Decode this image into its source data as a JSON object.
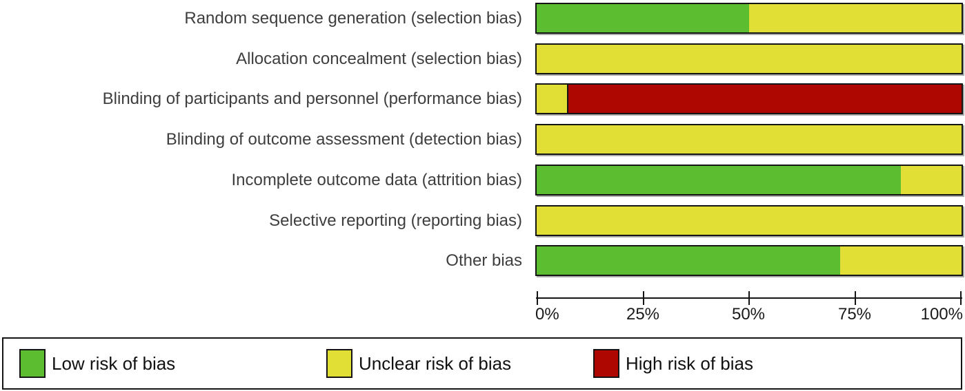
{
  "chart_data": {
    "type": "bar",
    "variant": "horizontal-stacked-percent",
    "title": "",
    "xlabel": "",
    "ylabel": "",
    "xlim": [
      0,
      100
    ],
    "grid": false,
    "legend_position": "bottom",
    "categories": [
      "Random sequence generation (selection bias)",
      "Allocation concealment (selection bias)",
      "Blinding of participants and personnel (performance bias)",
      "Blinding of outcome assessment (detection bias)",
      "Incomplete outcome data (attrition bias)",
      "Selective reporting (reporting bias)",
      "Other bias"
    ],
    "series": [
      {
        "name": "Low risk of bias",
        "color": "#5cbd31",
        "values": [
          50,
          0,
          0,
          0,
          85.7,
          0,
          71.4
        ]
      },
      {
        "name": "Unclear risk of bias",
        "color": "#e1df35",
        "values": [
          50,
          100,
          7.1,
          100,
          14.3,
          100,
          28.6
        ]
      },
      {
        "name": "High risk of bias",
        "color": "#ae0600",
        "values": [
          0,
          0,
          92.9,
          0,
          0,
          0,
          0
        ]
      }
    ],
    "x_ticks": [
      {
        "value": 0,
        "label": "0%"
      },
      {
        "value": 25,
        "label": "25%"
      },
      {
        "value": 50,
        "label": "50%"
      },
      {
        "value": 75,
        "label": "75%"
      },
      {
        "value": 100,
        "label": "100%"
      }
    ]
  },
  "legend": {
    "items": [
      {
        "label": "Low risk of bias",
        "color": "#5cbd31"
      },
      {
        "label": "Unclear risk of bias",
        "color": "#e1df35"
      },
      {
        "label": "High risk of bias",
        "color": "#ae0600"
      }
    ]
  },
  "colors": {
    "low": "#5cbd31",
    "unclear": "#e1df35",
    "high": "#ae0600",
    "border": "#141414",
    "label_text": "#3e3e3e",
    "axis_text": "#1a1a1a",
    "background": "#ffffff",
    "shadow": "#ababab"
  }
}
